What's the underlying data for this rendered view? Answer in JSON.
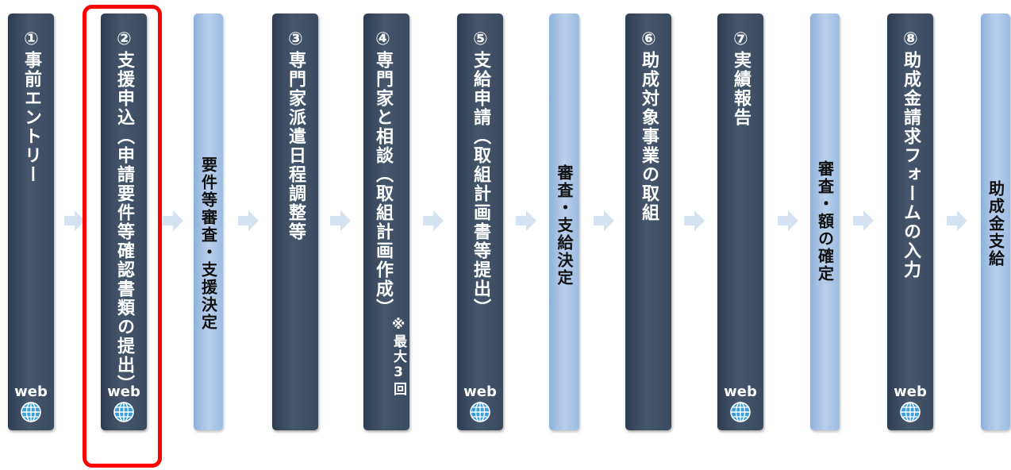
{
  "steps": [
    {
      "title": "①事前エントリー",
      "web": "web"
    },
    {
      "title": "②支援申込（申請要件等確認書類の提出）",
      "web": "web"
    },
    {
      "title": "要件等審査・支援決定"
    },
    {
      "title": "③専門家派遣日程調整等"
    },
    {
      "title": "④専門家と相談（取組計画作成）",
      "note": "※最大3回"
    },
    {
      "title": "⑤支給申請（取組計画書等提出）",
      "web": "web"
    },
    {
      "title": "審査・支給決定"
    },
    {
      "title": "⑥助成対象事業の取組"
    },
    {
      "title": "⑦実績報告",
      "web": "web"
    },
    {
      "title": "審査・額の確定"
    },
    {
      "title": "⑧助成金請求フォームの入力",
      "web": "web"
    },
    {
      "title": "助成金支給"
    }
  ],
  "colors": {
    "dark": "#3a4a60",
    "light": "#a9c4e6",
    "arrow": "#d4e2f2",
    "highlight": "#ff0000",
    "globe": "#3a9fd8"
  }
}
